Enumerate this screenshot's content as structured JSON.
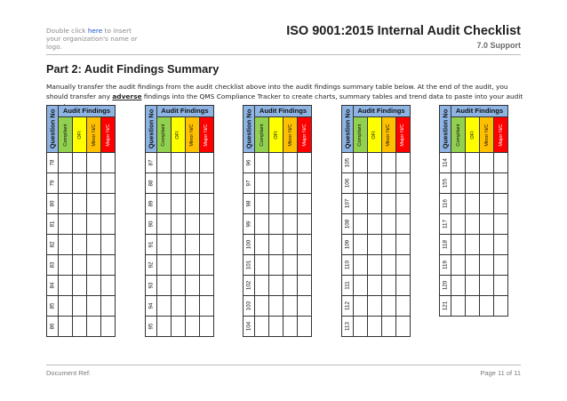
{
  "header": {
    "logo_note_prefix": "Double click ",
    "logo_note_link": "here",
    "logo_note_suffix": " to insert your organization's name or logo.",
    "title": "ISO 9001:2015 Internal Audit Checklist",
    "section": "7.0 Support"
  },
  "part": {
    "title": "Part 2: Audit Findings Summary",
    "intro_before": "Manually transfer the audit findings from the audit checklist above into the audit findings summary table below. At the end of the audit, you should transfer any ",
    "intro_emph": "adverse",
    "intro_after": " findings into the QMS Compliance Tracker to create charts, summary tables and trend data to paste into your audit report."
  },
  "table_headers": {
    "question_no": "Question No",
    "audit_findings": "Audit Findings",
    "compliant": "Compliant",
    "ofi": "OFI",
    "minor": "Minor N/C",
    "major": "Major N/C"
  },
  "colors": {
    "header_blue": "#8db4e2",
    "compliant": "#92d050",
    "ofi": "#ffff00",
    "minor": "#ffc000",
    "major": "#ff0000"
  },
  "blocks": [
    {
      "questions": [
        "78",
        "79",
        "80",
        "81",
        "82",
        "83",
        "84",
        "85",
        "86"
      ]
    },
    {
      "questions": [
        "87",
        "88",
        "89",
        "90",
        "91",
        "92",
        "93",
        "94",
        "95"
      ]
    },
    {
      "questions": [
        "96",
        "97",
        "98",
        "99",
        "100",
        "101",
        "102",
        "103",
        "104"
      ]
    },
    {
      "questions": [
        "105",
        "106",
        "107",
        "108",
        "109",
        "110",
        "111",
        "112",
        "113"
      ]
    },
    {
      "questions": [
        "114",
        "155",
        "116",
        "117",
        "118",
        "119",
        "120",
        "121"
      ]
    }
  ],
  "footer": {
    "doc_ref": "Document Ref:",
    "page": "Page 11 of 11"
  }
}
